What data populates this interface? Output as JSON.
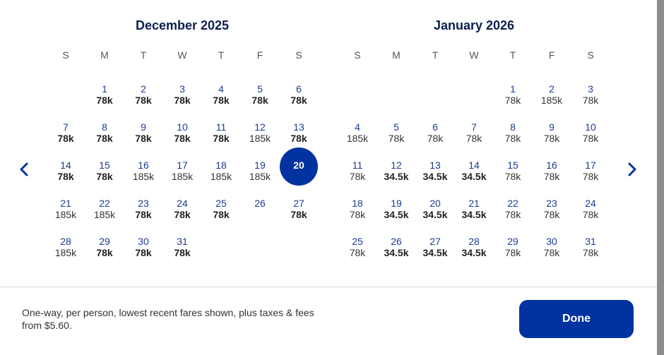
{
  "months": [
    {
      "title": "December 2025",
      "weekdays": [
        "S",
        "M",
        "T",
        "W",
        "T",
        "F",
        "S"
      ],
      "days": [
        {
          "day": "1",
          "price": "78k",
          "bold": true,
          "col": 1,
          "row": 0
        },
        {
          "day": "2",
          "price": "78k",
          "bold": true,
          "col": 2,
          "row": 0
        },
        {
          "day": "3",
          "price": "78k",
          "bold": true,
          "col": 3,
          "row": 0
        },
        {
          "day": "4",
          "price": "78k",
          "bold": true,
          "col": 4,
          "row": 0
        },
        {
          "day": "5",
          "price": "78k",
          "bold": true,
          "col": 5,
          "row": 0
        },
        {
          "day": "6",
          "price": "78k",
          "bold": true,
          "col": 6,
          "row": 0
        },
        {
          "day": "7",
          "price": "78k",
          "bold": true,
          "col": 0,
          "row": 1
        },
        {
          "day": "8",
          "price": "78k",
          "bold": true,
          "col": 1,
          "row": 1
        },
        {
          "day": "9",
          "price": "78k",
          "bold": true,
          "col": 2,
          "row": 1
        },
        {
          "day": "10",
          "price": "78k",
          "bold": true,
          "col": 3,
          "row": 1
        },
        {
          "day": "11",
          "price": "78k",
          "bold": true,
          "col": 4,
          "row": 1
        },
        {
          "day": "12",
          "price": "185k",
          "bold": false,
          "col": 5,
          "row": 1
        },
        {
          "day": "13",
          "price": "78k",
          "bold": true,
          "col": 6,
          "row": 1
        },
        {
          "day": "14",
          "price": "78k",
          "bold": true,
          "col": 0,
          "row": 2
        },
        {
          "day": "15",
          "price": "78k",
          "bold": true,
          "col": 1,
          "row": 2
        },
        {
          "day": "16",
          "price": "185k",
          "bold": false,
          "col": 2,
          "row": 2
        },
        {
          "day": "17",
          "price": "185k",
          "bold": false,
          "col": 3,
          "row": 2
        },
        {
          "day": "18",
          "price": "185k",
          "bold": false,
          "col": 4,
          "row": 2
        },
        {
          "day": "19",
          "price": "185k",
          "bold": false,
          "col": 5,
          "row": 2
        },
        {
          "day": "20",
          "price": "",
          "bold": false,
          "col": 6,
          "row": 2,
          "selected": true
        },
        {
          "day": "21",
          "price": "185k",
          "bold": false,
          "col": 0,
          "row": 3
        },
        {
          "day": "22",
          "price": "185k",
          "bold": false,
          "col": 1,
          "row": 3
        },
        {
          "day": "23",
          "price": "78k",
          "bold": true,
          "col": 2,
          "row": 3
        },
        {
          "day": "24",
          "price": "78k",
          "bold": true,
          "col": 3,
          "row": 3
        },
        {
          "day": "25",
          "price": "78k",
          "bold": true,
          "col": 4,
          "row": 3
        },
        {
          "day": "26",
          "price": "",
          "bold": false,
          "col": 5,
          "row": 3
        },
        {
          "day": "27",
          "price": "78k",
          "bold": true,
          "col": 6,
          "row": 3
        },
        {
          "day": "28",
          "price": "185k",
          "bold": false,
          "col": 0,
          "row": 4
        },
        {
          "day": "29",
          "price": "78k",
          "bold": true,
          "col": 1,
          "row": 4
        },
        {
          "day": "30",
          "price": "78k",
          "bold": true,
          "col": 2,
          "row": 4
        },
        {
          "day": "31",
          "price": "78k",
          "bold": true,
          "col": 3,
          "row": 4
        }
      ]
    },
    {
      "title": "January 2026",
      "weekdays": [
        "S",
        "M",
        "T",
        "W",
        "T",
        "F",
        "S"
      ],
      "days": [
        {
          "day": "1",
          "price": "78k",
          "bold": false,
          "col": 4,
          "row": 0
        },
        {
          "day": "2",
          "price": "185k",
          "bold": false,
          "col": 5,
          "row": 0
        },
        {
          "day": "3",
          "price": "78k",
          "bold": false,
          "col": 6,
          "row": 0
        },
        {
          "day": "4",
          "price": "185k",
          "bold": false,
          "col": 0,
          "row": 1
        },
        {
          "day": "5",
          "price": "78k",
          "bold": false,
          "col": 1,
          "row": 1
        },
        {
          "day": "6",
          "price": "78k",
          "bold": false,
          "col": 2,
          "row": 1
        },
        {
          "day": "7",
          "price": "78k",
          "bold": false,
          "col": 3,
          "row": 1
        },
        {
          "day": "8",
          "price": "78k",
          "bold": false,
          "col": 4,
          "row": 1
        },
        {
          "day": "9",
          "price": "78k",
          "bold": false,
          "col": 5,
          "row": 1
        },
        {
          "day": "10",
          "price": "78k",
          "bold": false,
          "col": 6,
          "row": 1
        },
        {
          "day": "11",
          "price": "78k",
          "bold": false,
          "col": 0,
          "row": 2
        },
        {
          "day": "12",
          "price": "34.5k",
          "bold": true,
          "col": 1,
          "row": 2
        },
        {
          "day": "13",
          "price": "34.5k",
          "bold": true,
          "col": 2,
          "row": 2
        },
        {
          "day": "14",
          "price": "34.5k",
          "bold": true,
          "col": 3,
          "row": 2
        },
        {
          "day": "15",
          "price": "78k",
          "bold": false,
          "col": 4,
          "row": 2
        },
        {
          "day": "16",
          "price": "78k",
          "bold": false,
          "col": 5,
          "row": 2
        },
        {
          "day": "17",
          "price": "78k",
          "bold": false,
          "col": 6,
          "row": 2
        },
        {
          "day": "18",
          "price": "78k",
          "bold": false,
          "col": 0,
          "row": 3
        },
        {
          "day": "19",
          "price": "34.5k",
          "bold": true,
          "col": 1,
          "row": 3
        },
        {
          "day": "20",
          "price": "34.5k",
          "bold": true,
          "col": 2,
          "row": 3
        },
        {
          "day": "21",
          "price": "34.5k",
          "bold": true,
          "col": 3,
          "row": 3
        },
        {
          "day": "22",
          "price": "78k",
          "bold": false,
          "col": 4,
          "row": 3
        },
        {
          "day": "23",
          "price": "78k",
          "bold": false,
          "col": 5,
          "row": 3
        },
        {
          "day": "24",
          "price": "78k",
          "bold": false,
          "col": 6,
          "row": 3
        },
        {
          "day": "25",
          "price": "78k",
          "bold": false,
          "col": 0,
          "row": 4
        },
        {
          "day": "26",
          "price": "34.5k",
          "bold": true,
          "col": 1,
          "row": 4
        },
        {
          "day": "27",
          "price": "34.5k",
          "bold": true,
          "col": 2,
          "row": 4
        },
        {
          "day": "28",
          "price": "34.5k",
          "bold": true,
          "col": 3,
          "row": 4
        },
        {
          "day": "29",
          "price": "78k",
          "bold": false,
          "col": 4,
          "row": 4
        },
        {
          "day": "30",
          "price": "78k",
          "bold": false,
          "col": 5,
          "row": 4
        },
        {
          "day": "31",
          "price": "78k",
          "bold": false,
          "col": 6,
          "row": 4
        }
      ]
    }
  ],
  "nav": {
    "prev_icon": "chevron-left-icon",
    "next_icon": "chevron-right-icon"
  },
  "footer": {
    "note": "One-way, per person, lowest recent fares shown, plus taxes & fees from $5.60.",
    "done_label": "Done"
  },
  "colors": {
    "accent": "#0033a0",
    "day_text": "#1a3b8f",
    "title": "#0b1f4f"
  }
}
